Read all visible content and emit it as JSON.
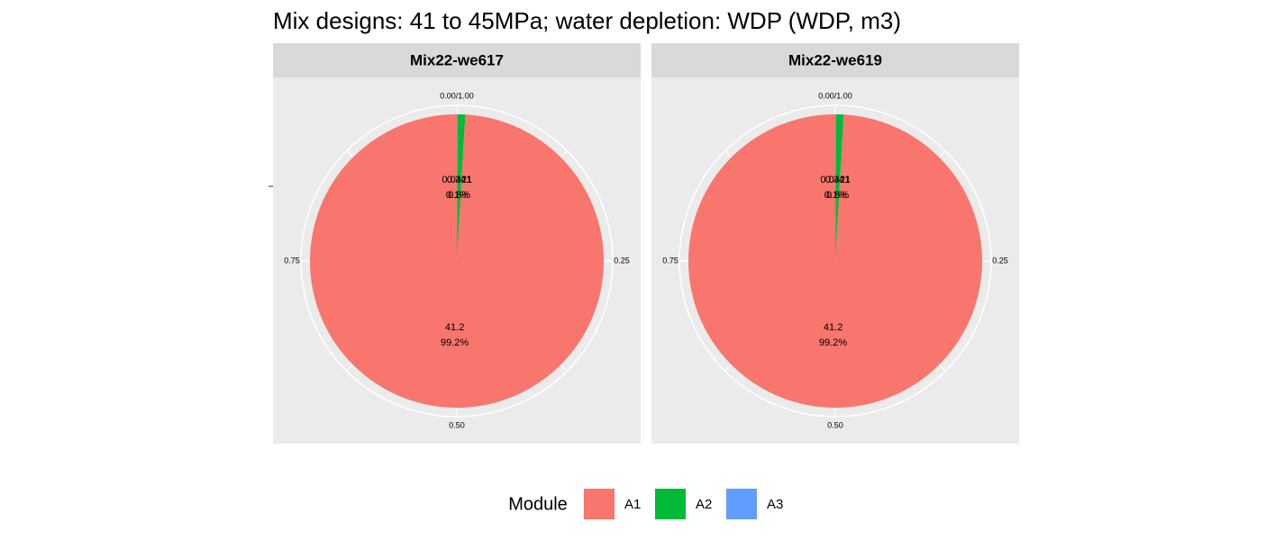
{
  "title": "Mix designs: 41 to 45MPa; water depletion: WDP (WDP, m3)",
  "legend": {
    "title": "Module"
  },
  "chart_data": [
    {
      "type": "pie",
      "title": "Mix22-we617",
      "categories": [
        "A1",
        "A2",
        "A3"
      ],
      "colors": [
        "#F8766D",
        "#00BA38",
        "#619CFF"
      ],
      "values": [
        41.2,
        0.341,
        0.0421
      ],
      "percent_labels": [
        "99.2%",
        "0.8%",
        "0.1%"
      ],
      "xticks": [
        {
          "value": 0,
          "label": "0.00/1.00"
        },
        0.25,
        {
          "value": 0.5,
          "label": "0.50"
        },
        0.75
      ]
    },
    {
      "type": "pie",
      "title": "Mix22-we619",
      "categories": [
        "A1",
        "A2",
        "A3"
      ],
      "colors": [
        "#F8766D",
        "#00BA38",
        "#619CFF"
      ],
      "values": [
        41.2,
        0.341,
        0.0421
      ],
      "percent_labels": [
        "99.2%",
        "0.8%",
        "0.1%"
      ],
      "xticks": [
        {
          "value": 0,
          "label": "0.00/1.00"
        },
        0.25,
        {
          "value": 0.5,
          "label": "0.50"
        },
        0.75
      ]
    }
  ]
}
